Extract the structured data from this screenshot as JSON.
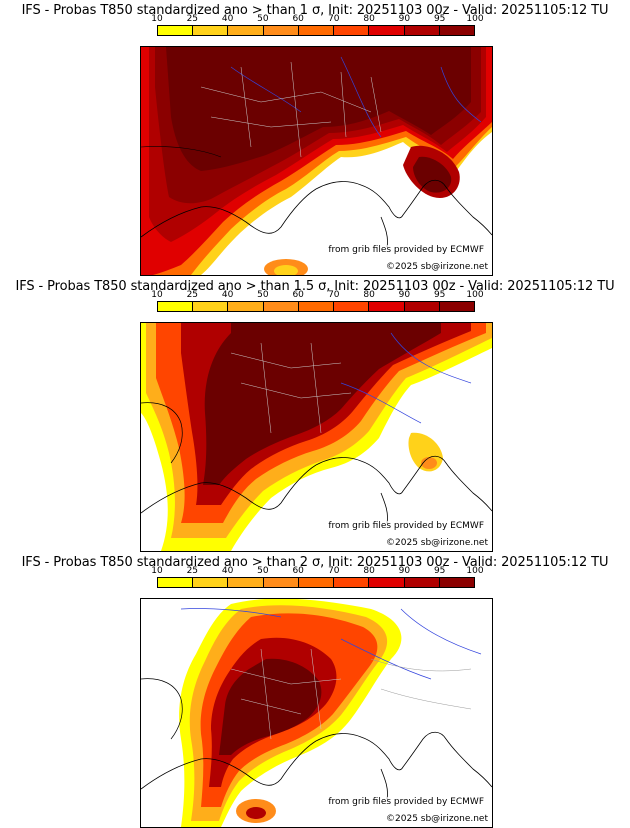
{
  "colorbar": {
    "ticks": [
      "10",
      "25",
      "40",
      "50",
      "60",
      "70",
      "80",
      "90",
      "95",
      "100"
    ],
    "colors": [
      "#ffff00",
      "#ffd21a",
      "#ffae1a",
      "#ff8c1a",
      "#ff6a00",
      "#ff4500",
      "#e00000",
      "#b00000",
      "#8b0000"
    ]
  },
  "colors": {
    "land_line": "#000000",
    "river": "#2233cc",
    "dept": "#bbbbbb"
  },
  "panels": [
    {
      "title": "IFS - Probas T850  standardized ano > than 1 σ, Init: 20251103 00z - Valid: 20251105:12 TU",
      "credit": "from grib files provided by ECMWF",
      "copyright": "©2025 sb@irizone.net"
    },
    {
      "title": "IFS - Probas T850  standardized ano > than 1.5 σ, Init: 20251103 00z - Valid: 20251105:12 TU",
      "credit": "from grib files provided by ECMWF",
      "copyright": "©2025 sb@irizone.net"
    },
    {
      "title": "IFS - Probas T850  standardized ano > than 2 σ, Init: 20251103 00z - Valid: 20251105:12 TU",
      "credit": "from grib files provided by ECMWF",
      "copyright": "©2025 sb@irizone.net"
    }
  ]
}
